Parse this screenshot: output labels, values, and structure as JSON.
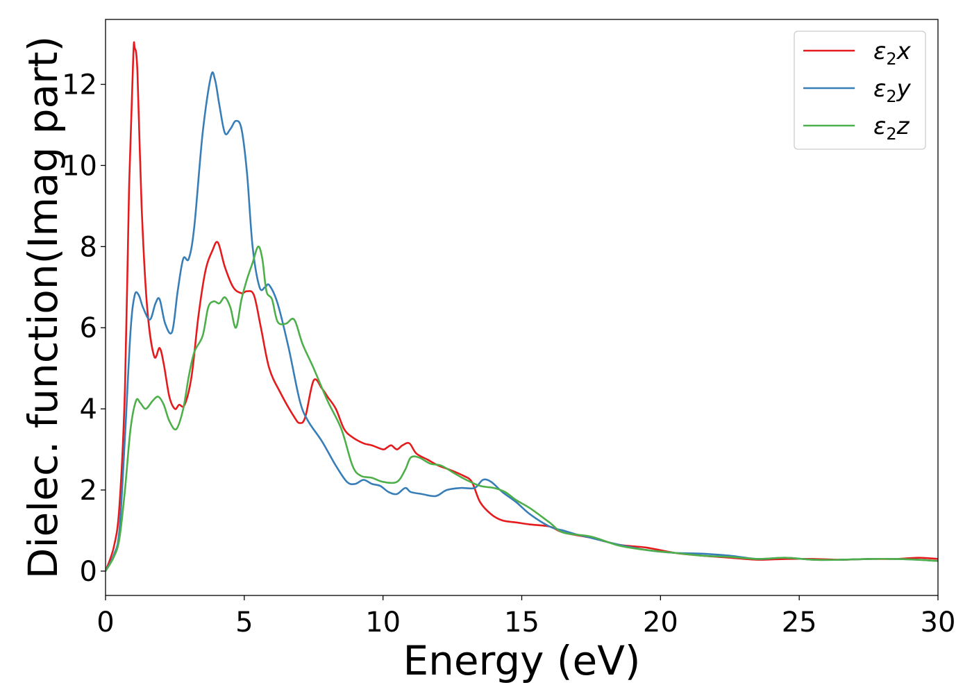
{
  "chart_data": {
    "type": "line",
    "title": "",
    "xlabel": "Energy (eV)",
    "ylabel": "Dielec. function(Imag part)",
    "xlim": [
      0,
      30
    ],
    "ylim": [
      -0.6,
      13.6
    ],
    "xticks": [
      0,
      5,
      10,
      15,
      20,
      25,
      30
    ],
    "xtick_labels": [
      "0",
      "5",
      "10",
      "15",
      "20",
      "25",
      "30"
    ],
    "yticks": [
      0,
      2,
      4,
      6,
      8,
      10,
      12
    ],
    "ytick_labels": [
      "0",
      "2",
      "4",
      "6",
      "8",
      "10",
      "12"
    ],
    "grid": false,
    "legend_position": "top-right",
    "series": [
      {
        "name": "ε2x",
        "legend": {
          "main": "ε",
          "sub": "2",
          "suffix": "x"
        },
        "color": "#e41a1c",
        "x": [
          0,
          0.3,
          0.5,
          0.7,
          0.85,
          1.0,
          1.05,
          1.15,
          1.3,
          1.5,
          1.75,
          1.95,
          2.1,
          2.3,
          2.5,
          2.65,
          2.85,
          3.1,
          3.35,
          3.6,
          3.85,
          4.05,
          4.3,
          4.6,
          4.9,
          5.1,
          5.35,
          5.6,
          5.9,
          6.3,
          6.8,
          7.0,
          7.2,
          7.5,
          7.8,
          8.0,
          8.3,
          8.6,
          8.9,
          9.3,
          9.6,
          10.0,
          10.15,
          10.3,
          10.5,
          10.7,
          10.95,
          11.2,
          11.6,
          12.0,
          12.4,
          12.9,
          13.2,
          13.5,
          13.9,
          14.3,
          14.8,
          15.3,
          16.0,
          16.5,
          17.5,
          18.5,
          19.5,
          20.5,
          21.5,
          22.5,
          23.5,
          24.5,
          25.5,
          26.5,
          27.5,
          28.5,
          29.3,
          30.0
        ],
        "y": [
          0,
          0.6,
          1.6,
          4.5,
          9.5,
          12.7,
          12.9,
          12.3,
          9.0,
          6.5,
          5.3,
          5.5,
          5.1,
          4.3,
          4.0,
          4.1,
          4.1,
          4.8,
          6.3,
          7.4,
          7.9,
          8.1,
          7.5,
          7.0,
          6.85,
          6.9,
          6.8,
          6.0,
          5.0,
          4.4,
          3.8,
          3.65,
          3.8,
          4.7,
          4.5,
          4.3,
          4.0,
          3.5,
          3.3,
          3.15,
          3.1,
          3.0,
          3.05,
          3.1,
          3.0,
          3.1,
          3.15,
          2.9,
          2.75,
          2.6,
          2.5,
          2.35,
          2.2,
          1.7,
          1.4,
          1.25,
          1.2,
          1.15,
          1.1,
          0.95,
          0.82,
          0.65,
          0.58,
          0.45,
          0.38,
          0.33,
          0.28,
          0.3,
          0.3,
          0.28,
          0.3,
          0.3,
          0.33,
          0.3
        ]
      },
      {
        "name": "ε2y",
        "legend": {
          "main": "ε",
          "sub": "2",
          "suffix": "y"
        },
        "color": "#377eb8",
        "x": [
          0,
          0.3,
          0.5,
          0.7,
          0.9,
          1.05,
          1.2,
          1.35,
          1.6,
          1.8,
          1.95,
          2.15,
          2.4,
          2.6,
          2.8,
          3.0,
          3.2,
          3.5,
          3.8,
          3.95,
          4.1,
          4.3,
          4.5,
          4.7,
          4.9,
          5.1,
          5.3,
          5.55,
          5.75,
          5.9,
          6.2,
          6.6,
          7.0,
          7.3,
          7.8,
          8.3,
          8.7,
          9.0,
          9.3,
          9.6,
          9.9,
          10.2,
          10.5,
          10.8,
          11.0,
          11.4,
          11.9,
          12.3,
          12.8,
          13.3,
          13.6,
          13.9,
          14.3,
          14.8,
          15.3,
          16.0,
          16.5,
          17.0,
          17.5,
          18.5,
          19.5,
          20.5,
          21.5,
          22.5,
          23.5,
          24.5,
          25.5,
          26.5,
          27.5,
          28.5,
          29.3,
          30.0
        ],
        "y": [
          0,
          0.4,
          1.0,
          3.3,
          5.9,
          6.8,
          6.8,
          6.5,
          6.2,
          6.6,
          6.7,
          6.1,
          5.9,
          6.9,
          7.7,
          7.7,
          8.5,
          10.8,
          12.2,
          12.1,
          11.5,
          10.8,
          10.9,
          11.1,
          10.9,
          9.8,
          8.0,
          7.0,
          7.0,
          7.05,
          6.6,
          5.5,
          4.2,
          3.7,
          3.2,
          2.6,
          2.2,
          2.15,
          2.25,
          2.15,
          2.1,
          1.95,
          1.9,
          2.05,
          1.95,
          1.9,
          1.85,
          2.0,
          2.05,
          2.05,
          2.25,
          2.2,
          1.95,
          1.7,
          1.4,
          1.1,
          1.0,
          0.9,
          0.82,
          0.65,
          0.52,
          0.45,
          0.43,
          0.38,
          0.3,
          0.33,
          0.28,
          0.28,
          0.3,
          0.3,
          0.28,
          0.25
        ]
      },
      {
        "name": "ε2z",
        "legend": {
          "main": "ε",
          "sub": "2",
          "suffix": "z"
        },
        "color": "#4daf4a",
        "x": [
          0,
          0.3,
          0.5,
          0.7,
          0.9,
          1.1,
          1.25,
          1.45,
          1.7,
          1.9,
          2.1,
          2.3,
          2.55,
          2.8,
          3.0,
          3.2,
          3.5,
          3.7,
          3.9,
          4.1,
          4.3,
          4.5,
          4.7,
          4.9,
          5.1,
          5.3,
          5.5,
          5.65,
          5.8,
          6.0,
          6.2,
          6.5,
          6.8,
          7.1,
          7.5,
          8.0,
          8.5,
          8.9,
          9.2,
          9.6,
          10.0,
          10.5,
          10.8,
          11.0,
          11.3,
          11.7,
          12.1,
          12.6,
          13.0,
          13.5,
          14.0,
          14.4,
          14.8,
          15.3,
          16.0,
          16.5,
          17.5,
          18.5,
          19.5,
          20.5,
          21.5,
          22.5,
          23.5,
          24.5,
          25.5,
          26.5,
          27.5,
          28.5,
          29.3,
          30.0
        ],
        "y": [
          0,
          0.35,
          0.8,
          2.0,
          3.5,
          4.2,
          4.15,
          4.0,
          4.2,
          4.3,
          4.1,
          3.7,
          3.5,
          4.0,
          4.8,
          5.4,
          5.8,
          6.5,
          6.65,
          6.6,
          6.75,
          6.5,
          6.0,
          6.7,
          7.2,
          7.6,
          8.0,
          7.7,
          6.9,
          6.7,
          6.15,
          6.1,
          6.2,
          5.6,
          5.0,
          4.2,
          3.5,
          2.6,
          2.35,
          2.3,
          2.2,
          2.2,
          2.5,
          2.8,
          2.8,
          2.65,
          2.6,
          2.4,
          2.25,
          2.1,
          2.05,
          1.95,
          1.75,
          1.55,
          1.2,
          0.95,
          0.85,
          0.63,
          0.52,
          0.45,
          0.38,
          0.35,
          0.3,
          0.33,
          0.28,
          0.28,
          0.3,
          0.3,
          0.28,
          0.25
        ]
      }
    ]
  }
}
